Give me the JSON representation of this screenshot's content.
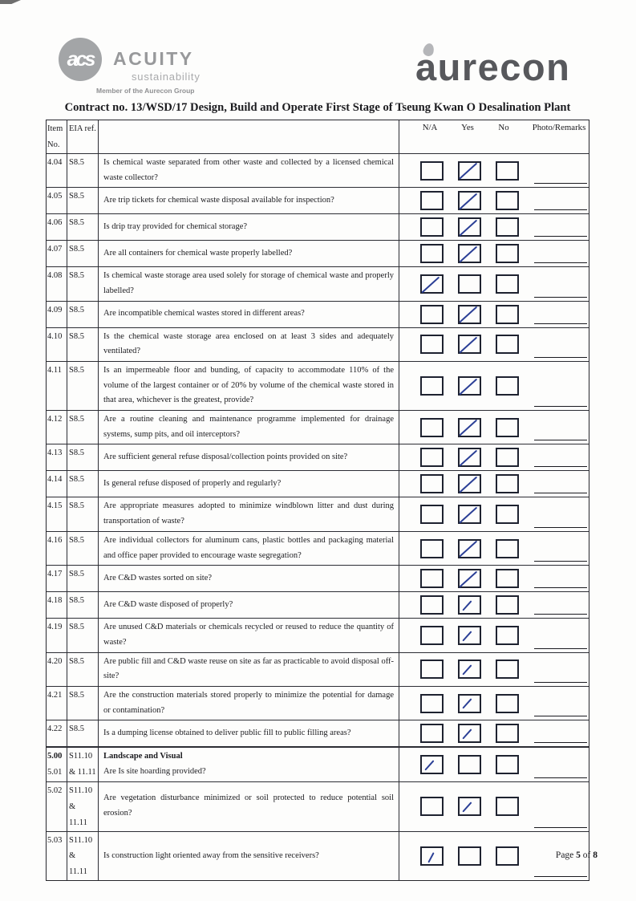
{
  "logos": {
    "acuity": {
      "monogram": "acs",
      "name": "ACUITY",
      "tagline": "sustainability",
      "member": "Member of the Aurecon Group"
    },
    "aurecon": {
      "name": "aurecon"
    }
  },
  "title": "Contract no.  13/WSD/17 Design, Build and Operate First Stage of Tseung Kwan O Desalination Plant",
  "table": {
    "header": {
      "item_line1": "Item",
      "item_line2": "No.",
      "eia": "EIA ref.",
      "na": "N/A",
      "yes": "Yes",
      "no": "No",
      "remarks": "Photo/Remarks"
    },
    "rows": [
      {
        "item": "4.04",
        "eia": "S8.5",
        "question": "Is chemical waste separated from other waste and collected by a licensed chemical waste collector?",
        "checked": "yes"
      },
      {
        "item": "4.05",
        "eia": "S8.5",
        "question": "Are trip tickets for chemical waste disposal available for inspection?",
        "checked": "yes"
      },
      {
        "item": "4.06",
        "eia": "S8.5",
        "question": "Is drip tray provided for chemical storage?",
        "checked": "yes"
      },
      {
        "item": "4.07",
        "eia": "S8.5",
        "question": "Are all containers for chemical waste properly labelled?",
        "checked": "yes"
      },
      {
        "item": "4.08",
        "eia": "S8.5",
        "question": "Is chemical waste storage area used solely for storage of chemical waste and properly labelled?",
        "checked": "na"
      },
      {
        "item": "4.09",
        "eia": "S8.5",
        "question": "Are incompatible chemical wastes stored in different areas?",
        "checked": "yes"
      },
      {
        "item": "4.10",
        "eia": "S8.5",
        "question": "Is the chemical waste storage area enclosed on at least 3 sides and adequately ventilated?",
        "checked": "yes"
      },
      {
        "item": "4.11",
        "eia": "S8.5",
        "question": "Is an impermeable floor and bunding, of capacity to accommodate 110% of the volume of the largest container or of 20% by volume of the chemical waste stored in that area, whichever is the greatest, provide?",
        "checked": "yes"
      },
      {
        "item": "4.12",
        "eia": "S8.5",
        "question": "Are a routine cleaning and maintenance programme implemented for drainage systems, sump pits, and oil interceptors?",
        "checked": "yes"
      },
      {
        "item": "4.13",
        "eia": "S8.5",
        "question": "Are sufficient general refuse disposal/collection points provided on site?",
        "checked": "yes"
      },
      {
        "item": "4.14",
        "eia": "S8.5",
        "question": "Is general refuse disposed of properly and regularly?",
        "checked": "yes"
      },
      {
        "item": "4.15",
        "eia": "S8.5",
        "question": "Are appropriate measures adopted to minimize windblown litter and dust during transportation of waste?",
        "checked": "yes"
      },
      {
        "item": "4.16",
        "eia": "S8.5",
        "question": "Are individual collectors for aluminum cans, plastic bottles and packaging material and office paper provided to encourage waste segregation?",
        "checked": "yes"
      },
      {
        "item": "4.17",
        "eia": "S8.5",
        "question": "Are C&D wastes sorted on site?",
        "checked": "yes"
      },
      {
        "item": "4.18",
        "eia": "S8.5",
        "question": "Are C&D waste disposed of properly?",
        "checked": "yes"
      },
      {
        "item": "4.19",
        "eia": "S8.5",
        "question": "Are unused C&D materials or chemicals recycled or reused to reduce the quantity of waste?",
        "checked": "yes"
      },
      {
        "item": "4.20",
        "eia": "S8.5",
        "question": "Are public fill and C&D waste reuse on site as far as practicable to avoid disposal off-site?",
        "checked": "yes"
      },
      {
        "item": "4.21",
        "eia": "S8.5",
        "question": "Are the construction materials stored properly to minimize the potential for damage or contamination?",
        "checked": "yes"
      },
      {
        "item": "4.22",
        "eia": "S8.5",
        "question": "Is a dumping license obtained to deliver public fill to public filling areas?",
        "checked": "yes"
      },
      {
        "item": "5.00",
        "item2": "5.01",
        "item_bold": true,
        "eia": "S11.10",
        "eia2": "& 11.11",
        "heading": "Landscape and Visual",
        "question": "Are Is site hoarding provided?",
        "checked": "na",
        "section_start": true
      },
      {
        "item": "5.02",
        "eia": "S11.10 &",
        "eia2": "11.11",
        "question": "Are vegetation disturbance minimized or soil protected to reduce potential soil erosion?",
        "checked": "yes"
      },
      {
        "item": "5.03",
        "eia": "S11.10 &",
        "eia2": "11.11",
        "question": "Is construction light oriented away from the sensitive receivers?",
        "checked": "na"
      }
    ]
  },
  "footer": {
    "word_page": "Page",
    "page_num": "5",
    "word_of": "of",
    "total": "8"
  },
  "colors": {
    "ink_blue": "#2b3f96",
    "table_border": "#2c2d34",
    "logo_gray": "#98999b",
    "aurecon_gray": "#57585c"
  }
}
